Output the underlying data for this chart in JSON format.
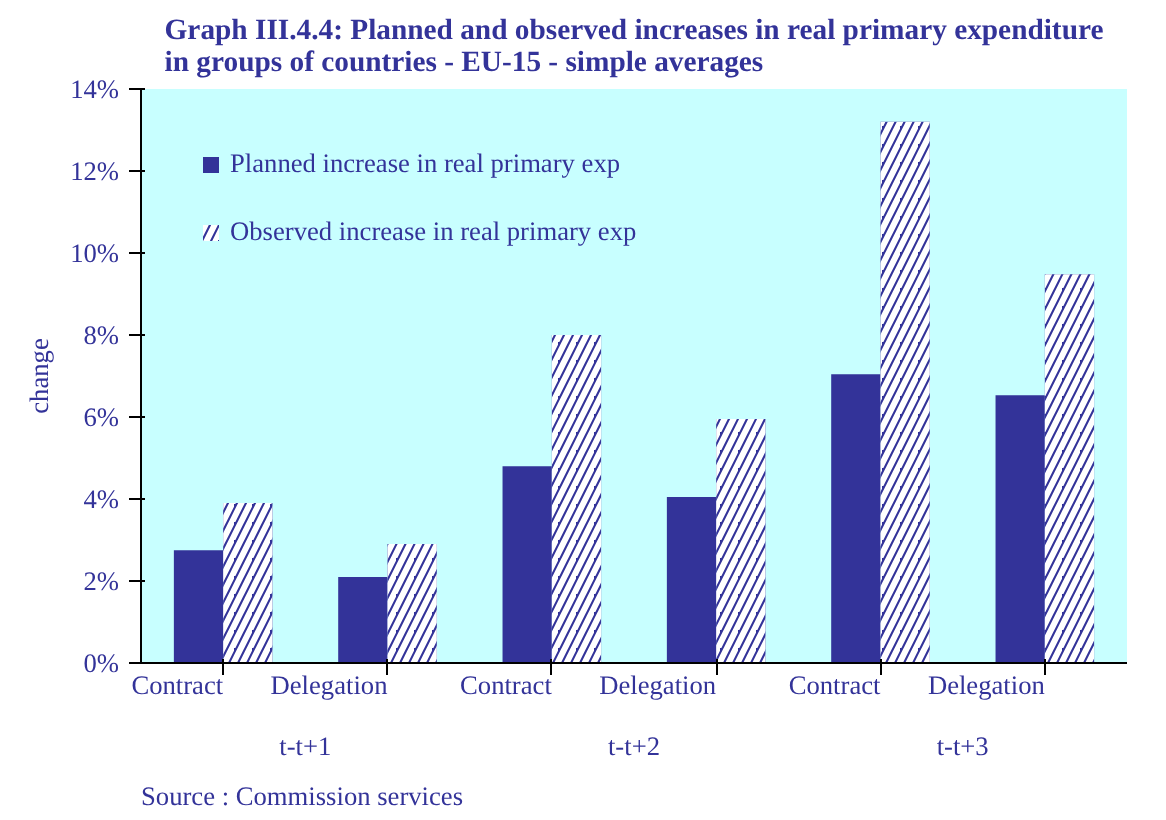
{
  "chart_data": {
    "type": "bar",
    "title": "Graph III.4.4: Planned and observed increases in real primary expenditure in groups of countries - EU-15 - simple averages",
    "ylabel": "change",
    "categories": [
      "Contract",
      "Delegation",
      "Contract",
      "Delegation",
      "Contract",
      "Delegation"
    ],
    "series": [
      {
        "name": "Planned increase in real primary exp",
        "color": "#333399",
        "values": [
          2.75,
          2.1,
          4.8,
          4.05,
          7.04,
          6.53
        ]
      },
      {
        "name": "Observed increase in real primary exp",
        "color": "#333399",
        "values": [
          3.9,
          2.9,
          8.0,
          5.95,
          13.2,
          9.48
        ]
      }
    ],
    "ylim": [
      0,
      14
    ],
    "yticks": [
      {
        "value": 0,
        "label": "0%"
      },
      {
        "value": 2,
        "label": "2%"
      },
      {
        "value": 4,
        "label": "4%"
      },
      {
        "value": 6,
        "label": "6%"
      },
      {
        "value": 8,
        "label": "8%"
      },
      {
        "value": 10,
        "label": "10%"
      },
      {
        "value": 12,
        "label": "12%"
      },
      {
        "value": 14,
        "label": "14%"
      }
    ],
    "annotations": [
      "t-t+1",
      "t-t+2",
      "t-t+3",
      "Source : Commission services"
    ],
    "legend": "top left",
    "grid": false
  }
}
